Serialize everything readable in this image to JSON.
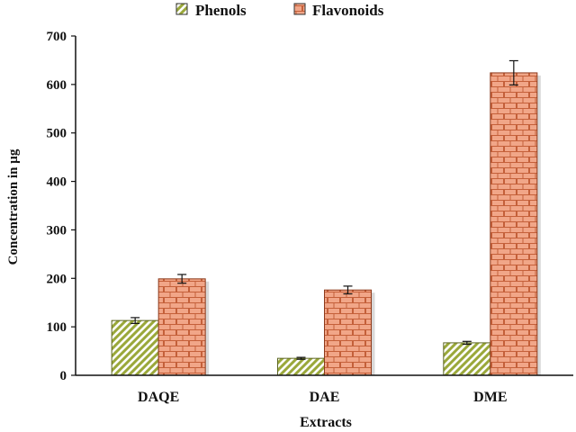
{
  "chart_data": {
    "type": "bar",
    "categories": [
      "DAQE",
      "DAE",
      "DME"
    ],
    "series": [
      {
        "name": "Phenols",
        "values": [
          113,
          35,
          67
        ],
        "errors": [
          6,
          2,
          3
        ],
        "fill_color": "#9aa83a",
        "pattern": "diagonal-stripes"
      },
      {
        "name": "Flavonoids",
        "values": [
          199,
          176,
          624
        ],
        "errors": [
          9,
          8,
          25
        ],
        "fill_color": "#f1a688",
        "line_color": "#b3522c",
        "pattern": "brick"
      }
    ],
    "xlabel": "Extracts",
    "ylabel": "Concentration in µg",
    "ylim": [
      0,
      700
    ],
    "yticks": [
      "0",
      "100",
      "200",
      "300",
      "400",
      "500",
      "600",
      "700"
    ],
    "yticks_values": [
      0,
      100,
      200,
      300,
      400,
      500,
      600,
      700
    ],
    "grid": false,
    "legend_position": "top-center"
  }
}
